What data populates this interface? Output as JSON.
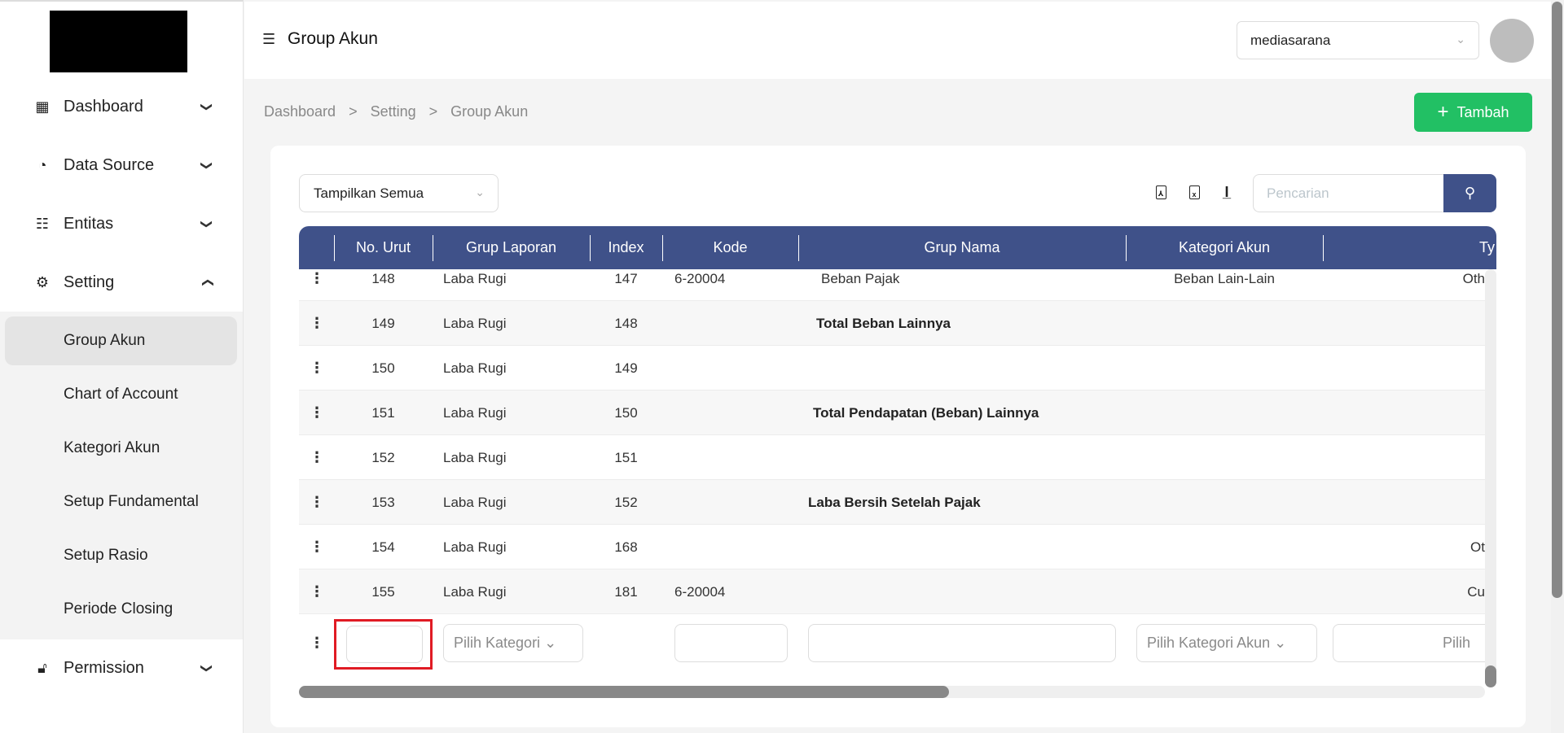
{
  "sidebar": {
    "menu": [
      {
        "label": "Dashboard",
        "icon": "grid-icon",
        "expanded": false
      },
      {
        "label": "Data Source",
        "icon": "pie-chart-icon",
        "expanded": false
      },
      {
        "label": "Entitas",
        "icon": "sliders-icon",
        "expanded": false
      },
      {
        "label": "Setting",
        "icon": "gear-icon",
        "expanded": true
      }
    ],
    "sub": [
      "Group Akun",
      "Chart of Account",
      "Kategori Akun",
      "Setup Fundamental",
      "Setup Rasio",
      "Periode Closing"
    ],
    "active_sub": "Group Akun",
    "permission": "Permission"
  },
  "header": {
    "title": "Group Akun",
    "company": "mediasarana"
  },
  "breadcrumb": [
    "Dashboard",
    ">",
    "Setting",
    ">",
    "Group Akun"
  ],
  "add_button": "Tambah",
  "filter": "Tampilkan Semua",
  "search_placeholder": "Pencarian",
  "colors": {
    "header": "#3f5189",
    "accent": "#22c064",
    "highlight": "#e01b24"
  },
  "columns": [
    "No. Urut",
    "Grup Laporan",
    "Index",
    "Kode",
    "Grup Nama",
    "Kategori Akun",
    "Ty"
  ],
  "rows": [
    {
      "no": "148",
      "grup": "Laba Rugi",
      "index": "147",
      "kode": "6-20004",
      "nama": "Beban Pajak",
      "bold": false,
      "kategori": "Beban Lain-Lain",
      "type": "Oth"
    },
    {
      "no": "149",
      "grup": "Laba Rugi",
      "index": "148",
      "kode": "",
      "nama": "Total Beban Lainnya",
      "bold": true,
      "kategori": "",
      "type": ""
    },
    {
      "no": "150",
      "grup": "Laba Rugi",
      "index": "149",
      "kode": "",
      "nama": "",
      "bold": false,
      "kategori": "",
      "type": ""
    },
    {
      "no": "151",
      "grup": "Laba Rugi",
      "index": "150",
      "kode": "",
      "nama": "Total Pendapatan (Beban) Lainnya",
      "bold": true,
      "kategori": "",
      "type": ""
    },
    {
      "no": "152",
      "grup": "Laba Rugi",
      "index": "151",
      "kode": "",
      "nama": "",
      "bold": false,
      "kategori": "",
      "type": ""
    },
    {
      "no": "153",
      "grup": "Laba Rugi",
      "index": "152",
      "kode": "",
      "nama": "Laba Bersih Setelah Pajak",
      "bold": true,
      "kategori": "",
      "type": ""
    },
    {
      "no": "154",
      "grup": "Laba Rugi",
      "index": "168",
      "kode": "",
      "nama": "",
      "bold": false,
      "kategori": "",
      "type": "Ot"
    },
    {
      "no": "155",
      "grup": "Laba Rugi",
      "index": "181",
      "kode": "6-20004",
      "nama": "",
      "bold": false,
      "kategori": "",
      "type": "Cu"
    }
  ],
  "new_row": {
    "grup_placeholder": "Pilih Kategori",
    "kategori_placeholder": "Pilih Kategori Akun",
    "type_placeholder": "Pilih"
  }
}
